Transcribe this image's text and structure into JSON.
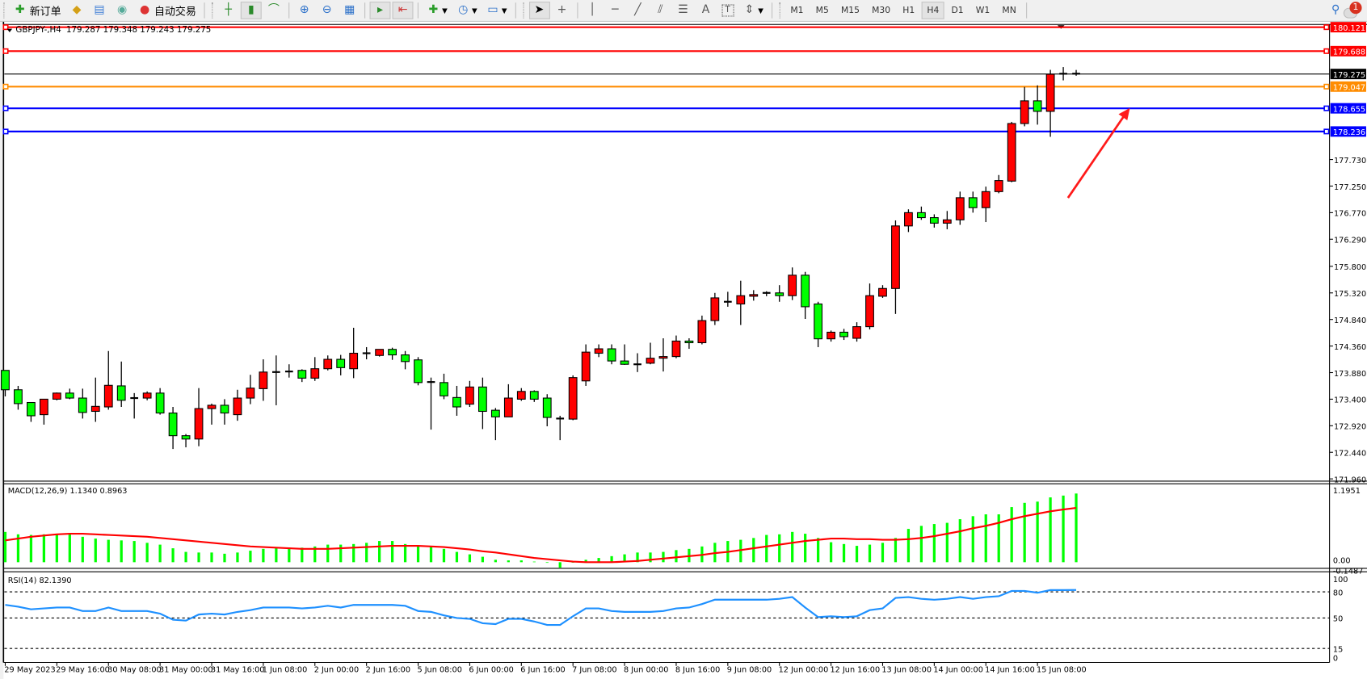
{
  "toolbar": {
    "new_order": "新订单",
    "auto_trading": "自动交易",
    "text_tool": "A",
    "label_tool": "T",
    "timeframes": [
      "M1",
      "M5",
      "M15",
      "M30",
      "H1",
      "H4",
      "D1",
      "W1",
      "MN"
    ],
    "active_timeframe": "H4",
    "notification_count": "1"
  },
  "chart_header": {
    "symbol": "GBPJPY-,H4",
    "ohlc": "179.287 179.348 179.243 179.275"
  },
  "chart_data": {
    "type": "candlestick",
    "symbol": "GBPJPY-",
    "timeframe": "H4",
    "bull_color": "#ff0000",
    "bear_color": "#00ff00",
    "candle_fields": [
      "open",
      "high",
      "low",
      "close"
    ],
    "candles": [
      [
        173.92,
        173.92,
        173.45,
        173.57
      ],
      [
        173.57,
        173.64,
        173.21,
        173.32
      ],
      [
        173.34,
        173.34,
        172.99,
        173.1
      ],
      [
        173.12,
        173.4,
        172.94,
        173.4
      ],
      [
        173.4,
        173.52,
        173.38,
        173.51
      ],
      [
        173.51,
        173.59,
        173.4,
        173.42
      ],
      [
        173.42,
        173.59,
        173.05,
        173.16
      ],
      [
        173.18,
        173.79,
        172.99,
        173.27
      ],
      [
        173.26,
        174.27,
        173.21,
        173.65
      ],
      [
        173.64,
        174.08,
        173.26,
        173.38
      ],
      [
        173.42,
        173.51,
        173.05,
        173.42
      ],
      [
        173.42,
        173.54,
        173.38,
        173.51
      ],
      [
        173.51,
        173.6,
        173.12,
        173.15
      ],
      [
        173.15,
        173.26,
        172.5,
        172.74
      ],
      [
        172.74,
        172.77,
        172.53,
        172.68
      ],
      [
        172.68,
        173.6,
        172.55,
        173.23
      ],
      [
        173.23,
        173.32,
        172.94,
        173.29
      ],
      [
        173.29,
        173.4,
        172.94,
        173.15
      ],
      [
        173.12,
        173.57,
        173.01,
        173.42
      ],
      [
        173.42,
        173.84,
        173.31,
        173.6
      ],
      [
        173.59,
        174.12,
        173.37,
        173.89
      ],
      [
        173.89,
        174.19,
        173.29,
        173.89
      ],
      [
        173.9,
        174.03,
        173.79,
        173.9
      ],
      [
        173.92,
        173.94,
        173.71,
        173.78
      ],
      [
        173.78,
        174.16,
        173.73,
        173.95
      ],
      [
        173.95,
        174.19,
        173.92,
        174.12
      ],
      [
        174.12,
        174.2,
        173.83,
        173.97
      ],
      [
        173.95,
        174.69,
        173.78,
        174.23
      ],
      [
        174.23,
        174.34,
        174.12,
        174.23
      ],
      [
        174.19,
        174.3,
        174.17,
        174.3
      ],
      [
        174.3,
        174.33,
        174.11,
        174.2
      ],
      [
        174.2,
        174.27,
        173.94,
        174.08
      ],
      [
        174.11,
        174.16,
        173.65,
        173.7
      ],
      [
        173.71,
        173.79,
        172.85,
        173.71
      ],
      [
        173.7,
        173.86,
        173.4,
        173.46
      ],
      [
        173.43,
        173.64,
        173.1,
        173.26
      ],
      [
        173.31,
        173.73,
        173.26,
        173.62
      ],
      [
        173.62,
        173.79,
        172.86,
        173.18
      ],
      [
        173.2,
        173.24,
        172.66,
        173.08
      ],
      [
        173.08,
        173.67,
        173.08,
        173.42
      ],
      [
        173.4,
        173.6,
        173.37,
        173.54
      ],
      [
        173.54,
        173.56,
        173.35,
        173.4
      ],
      [
        173.42,
        173.49,
        172.91,
        173.07
      ],
      [
        173.05,
        173.1,
        172.66,
        173.05
      ],
      [
        173.04,
        173.83,
        173.02,
        173.79
      ],
      [
        173.73,
        174.39,
        173.64,
        174.25
      ],
      [
        174.23,
        174.39,
        174.16,
        174.31
      ],
      [
        174.31,
        174.39,
        174.03,
        174.09
      ],
      [
        174.09,
        174.39,
        174.02,
        174.03
      ],
      [
        174.03,
        174.23,
        173.89,
        174.03
      ],
      [
        174.05,
        174.42,
        174.03,
        174.14
      ],
      [
        174.14,
        174.5,
        173.9,
        174.17
      ],
      [
        174.17,
        174.55,
        174.14,
        174.45
      ],
      [
        174.45,
        174.5,
        174.31,
        174.42
      ],
      [
        174.42,
        174.91,
        174.39,
        174.82
      ],
      [
        174.82,
        175.32,
        174.74,
        175.23
      ],
      [
        175.16,
        175.34,
        175.07,
        175.16
      ],
      [
        175.12,
        175.54,
        174.74,
        175.27
      ],
      [
        175.26,
        175.37,
        175.18,
        175.29
      ],
      [
        175.32,
        175.35,
        175.26,
        175.32
      ],
      [
        175.32,
        175.46,
        175.16,
        175.27
      ],
      [
        175.27,
        175.78,
        175.19,
        175.64
      ],
      [
        175.64,
        175.7,
        174.85,
        175.07
      ],
      [
        175.12,
        175.16,
        174.34,
        174.49
      ],
      [
        174.49,
        174.64,
        174.44,
        174.61
      ],
      [
        174.61,
        174.67,
        174.47,
        174.53
      ],
      [
        174.5,
        174.79,
        174.44,
        174.71
      ],
      [
        174.71,
        175.49,
        174.66,
        175.27
      ],
      [
        175.26,
        175.46,
        175.23,
        175.4
      ],
      [
        175.4,
        176.63,
        174.94,
        176.53
      ],
      [
        176.53,
        176.83,
        176.42,
        176.77
      ],
      [
        176.77,
        176.88,
        176.64,
        176.68
      ],
      [
        176.68,
        176.74,
        176.5,
        176.58
      ],
      [
        176.58,
        176.8,
        176.47,
        176.64
      ],
      [
        176.64,
        177.15,
        176.55,
        177.04
      ],
      [
        177.04,
        177.15,
        176.77,
        176.86
      ],
      [
        176.86,
        177.24,
        176.6,
        177.15
      ],
      [
        177.15,
        177.45,
        177.12,
        177.35
      ],
      [
        177.34,
        178.41,
        177.32,
        178.38
      ],
      [
        178.38,
        179.04,
        178.33,
        178.79
      ],
      [
        178.79,
        179.07,
        178.36,
        178.6
      ],
      [
        178.6,
        179.35,
        178.14,
        179.27
      ],
      [
        179.29,
        179.4,
        179.16,
        179.27
      ],
      [
        179.287,
        179.348,
        179.243,
        179.275
      ]
    ],
    "price_ticks": [
      "177.730",
      "177.250",
      "176.770",
      "176.290",
      "175.800",
      "175.320",
      "174.840",
      "174.360",
      "173.880",
      "173.400",
      "172.920",
      "172.440",
      "171.960"
    ],
    "horizontal_lines": [
      {
        "price": "180.121",
        "color": "#ff0000"
      },
      {
        "price": "179.688",
        "color": "#ff0000"
      },
      {
        "price": "179.047",
        "color": "#ff8c00"
      },
      {
        "price": "178.655",
        "color": "#0000ff"
      },
      {
        "price": "178.236",
        "color": "#0000ff"
      }
    ],
    "bid_line": {
      "price": "179.275",
      "color": "#000000"
    },
    "time_labels": [
      {
        "label": "29 May 2023",
        "candle": 0
      },
      {
        "label": "29 May 16:00",
        "candle": 4
      },
      {
        "label": "30 May 08:00",
        "candle": 8
      },
      {
        "label": "31 May 00:00",
        "candle": 12
      },
      {
        "label": "31 May 16:00",
        "candle": 16
      },
      {
        "label": "1 Jun 08:00",
        "candle": 20
      },
      {
        "label": "2 Jun 00:00",
        "candle": 24
      },
      {
        "label": "2 Jun 16:00",
        "candle": 28
      },
      {
        "label": "5 Jun 08:00",
        "candle": 32
      },
      {
        "label": "6 Jun 00:00",
        "candle": 36
      },
      {
        "label": "6 Jun 16:00",
        "candle": 40
      },
      {
        "label": "7 Jun 08:00",
        "candle": 44
      },
      {
        "label": "8 Jun 00:00",
        "candle": 48
      },
      {
        "label": "8 Jun 16:00",
        "candle": 52
      },
      {
        "label": "9 Jun 08:00",
        "candle": 56
      },
      {
        "label": "12 Jun 00:00",
        "candle": 60
      },
      {
        "label": "12 Jun 16:00",
        "candle": 64
      },
      {
        "label": "13 Jun 08:00",
        "candle": 68
      },
      {
        "label": "14 Jun 00:00",
        "candle": 72
      },
      {
        "label": "14 Jun 16:00",
        "candle": 76
      },
      {
        "label": "15 Jun 08:00",
        "candle": 80
      }
    ],
    "macd": {
      "label": "MACD(12,26,9) 1.1340 0.8963",
      "axis_max": "1.1951",
      "axis_zero": "0.00",
      "axis_min": "-0.1487",
      "histogram_color": "#00ff00",
      "signal_color": "#ff0000",
      "histogram": [
        0.5,
        0.46,
        0.45,
        0.46,
        0.47,
        0.46,
        0.42,
        0.39,
        0.37,
        0.36,
        0.35,
        0.32,
        0.29,
        0.23,
        0.17,
        0.16,
        0.16,
        0.14,
        0.16,
        0.19,
        0.22,
        0.23,
        0.24,
        0.24,
        0.26,
        0.29,
        0.29,
        0.3,
        0.32,
        0.35,
        0.35,
        0.3,
        0.27,
        0.26,
        0.22,
        0.17,
        0.13,
        0.09,
        0.04,
        0.03,
        0.03,
        0.01,
        -0.01,
        -0.09,
        0.0,
        0.04,
        0.07,
        0.1,
        0.13,
        0.16,
        0.16,
        0.17,
        0.2,
        0.22,
        0.26,
        0.32,
        0.35,
        0.37,
        0.4,
        0.45,
        0.46,
        0.5,
        0.47,
        0.4,
        0.33,
        0.3,
        0.27,
        0.29,
        0.32,
        0.4,
        0.55,
        0.6,
        0.63,
        0.65,
        0.71,
        0.76,
        0.79,
        0.79,
        0.91,
        0.98,
        1.0,
        1.07,
        1.1,
        1.134
      ],
      "signal": [
        0.36,
        0.39,
        0.42,
        0.44,
        0.46,
        0.47,
        0.47,
        0.46,
        0.45,
        0.44,
        0.43,
        0.42,
        0.4,
        0.38,
        0.36,
        0.34,
        0.32,
        0.3,
        0.28,
        0.26,
        0.25,
        0.24,
        0.23,
        0.22,
        0.22,
        0.22,
        0.23,
        0.24,
        0.25,
        0.26,
        0.27,
        0.27,
        0.27,
        0.26,
        0.25,
        0.23,
        0.21,
        0.18,
        0.16,
        0.13,
        0.1,
        0.07,
        0.05,
        0.03,
        0.01,
        0.0,
        0.0,
        0.0,
        0.01,
        0.02,
        0.04,
        0.06,
        0.08,
        0.1,
        0.12,
        0.15,
        0.17,
        0.2,
        0.23,
        0.26,
        0.29,
        0.32,
        0.35,
        0.37,
        0.39,
        0.39,
        0.38,
        0.38,
        0.37,
        0.37,
        0.38,
        0.4,
        0.43,
        0.47,
        0.51,
        0.56,
        0.6,
        0.65,
        0.71,
        0.76,
        0.8,
        0.84,
        0.87,
        0.8963
      ]
    },
    "rsi": {
      "label": "RSI(14) 82.1390",
      "axis_labels": [
        "100",
        "80",
        "50",
        "15",
        "0"
      ],
      "levels": [
        80,
        50,
        15
      ],
      "color": "#1e90ff",
      "values": [
        65,
        63,
        60,
        61,
        62,
        62,
        58,
        58,
        62,
        58,
        58,
        58,
        55,
        48,
        47,
        54,
        55,
        54,
        57,
        59,
        62,
        62,
        62,
        61,
        62,
        64,
        62,
        65,
        65,
        65,
        65,
        64,
        58,
        57,
        53,
        50,
        49,
        44,
        43,
        49,
        49,
        46,
        42,
        42,
        52,
        61,
        61,
        58,
        57,
        57,
        57,
        58,
        61,
        62,
        66,
        71,
        71,
        71,
        71,
        71,
        72,
        74,
        62,
        51,
        52,
        51,
        52,
        59,
        61,
        73,
        74,
        72,
        71,
        72,
        74,
        72,
        74,
        75,
        81,
        81,
        79,
        82,
        82,
        82.139
      ]
    }
  }
}
